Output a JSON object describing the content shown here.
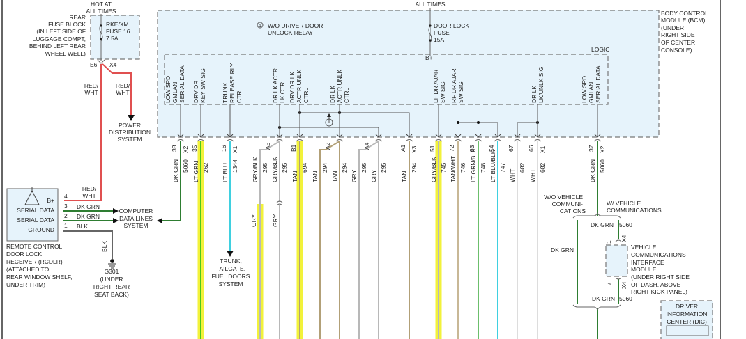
{
  "rear_fuse_block": {
    "hot_label": [
      "HOT AT",
      "ALL TIMES"
    ],
    "location": [
      "REAR",
      "FUSE BLOCK",
      "(IN LEFT SIDE OF",
      "LUGGAGE COMPT,",
      "BEHIND LEFT REAR",
      "WHEEL WELL)"
    ],
    "fuse": [
      "RKE/XM",
      "FUSE 16",
      "7.5A"
    ],
    "pin": "E6",
    "connector": "X4"
  },
  "red_wire_labels": [
    "RED/",
    "WHT"
  ],
  "power_distribution": [
    "POWER",
    "DISTRIBUTION",
    "SYSTEM"
  ],
  "bcm": {
    "hot_label": "ALL TIMES",
    "name": [
      "BODY CONTROL",
      "MODULE (BCM)",
      "(UNDER",
      "RIGHT SIDE",
      "OF CENTER",
      "CONSOLE)"
    ],
    "relay_note_symbol": "1",
    "relay_note": [
      "W/O DRIVER DOOR",
      "UNLOCK RELAY"
    ],
    "fuse": [
      "DOOR LOCK",
      "FUSE",
      "15A"
    ],
    "bplus": "B+",
    "logic": "LOGIC",
    "signals": [
      [
        "LOW SPD",
        "GMLAN",
        "SERIAL DATA"
      ],
      [
        "DRV DR",
        "KEY SW SIG"
      ],
      [
        "TRUNK",
        "RELEASE RLY",
        "CTRL"
      ],
      [
        "DR LK ACTR",
        "LK CTRL"
      ],
      [
        "DRV DR LK",
        "ACTR UNLK",
        "CTRL"
      ],
      [
        "DR LK",
        "ACTR UNLK",
        "CTRL"
      ],
      [
        "LF DR AJAR",
        "SW SIG"
      ],
      [
        "RF DR AJAR",
        "SW SIG"
      ],
      [
        "DR LK",
        "LK/UNLK SIG"
      ],
      [
        "LOW SPD",
        "GMLAN",
        "SERIAL DATA"
      ]
    ]
  },
  "wires": [
    {
      "pin": "38",
      "connector": "X2",
      "color": "DK GRN",
      "circuit": "5060"
    },
    {
      "pin": "35",
      "connector": "",
      "color": "LT GRN",
      "circuit": "262"
    },
    {
      "pin": "16",
      "connector": "X1",
      "color": "LT BLU",
      "circuit": "1344"
    },
    {
      "pin": "A5",
      "connector": "",
      "color": "GRY/BLK",
      "circuit": "295"
    },
    {
      "pin": "",
      "connector": "",
      "color": "GRY/BLK",
      "circuit": "295"
    },
    {
      "pin": "B1",
      "connector": "",
      "color": "TAN",
      "circuit": "694"
    },
    {
      "pin": "A2",
      "connector": "",
      "color": "TAN",
      "circuit": "294"
    },
    {
      "pin": "",
      "connector": "",
      "color": "TAN",
      "circuit": "294"
    },
    {
      "pin": "A4",
      "connector": "",
      "color": "GRY",
      "circuit": "295"
    },
    {
      "pin": "",
      "connector": "",
      "color": "GRY",
      "circuit": "295"
    },
    {
      "pin": "A1",
      "connector": "X3",
      "color": "TAN",
      "circuit": "294"
    },
    {
      "pin": "51",
      "connector": "",
      "color": "GRY/BLK",
      "circuit": "745"
    },
    {
      "pin": "72",
      "connector": "",
      "color": "TAN/WHT",
      "circuit": "746"
    },
    {
      "pin": "53",
      "connector": "",
      "color": "LT GRN/BLK",
      "circuit": "748"
    },
    {
      "pin": "54",
      "connector": "",
      "color": "LT BLU/BLK",
      "circuit": "747"
    },
    {
      "pin": "67",
      "connector": "",
      "color": "WHT",
      "circuit": "682"
    },
    {
      "pin": "66",
      "connector": "X1",
      "color": "WHT",
      "circuit": "682"
    },
    {
      "pin": "37",
      "connector": "X2",
      "color": "DK GRN",
      "circuit": "5060"
    }
  ],
  "gry_labels": [
    "GRY",
    "GRY"
  ],
  "trunk_system": [
    "TRUNK,",
    "TAILGATE,",
    "FUEL DOORS",
    "SYSTEM"
  ],
  "rcdlr": {
    "pins": [
      {
        "num": "4",
        "label": "B+",
        "wire": "RED/WHT"
      },
      {
        "num": "3",
        "label": "SERIAL DATA",
        "wire": "DK GRN"
      },
      {
        "num": "2",
        "label": "SERIAL DATA",
        "wire": "DK GRN"
      },
      {
        "num": "1",
        "label": "GROUND",
        "wire": "BLK"
      }
    ],
    "wire_red": [
      "RED/",
      "WHT"
    ],
    "name": [
      "REMOTE CONTROL",
      "DOOR LOCK",
      "RECEIVER (RCDLR)",
      "(ATTACHED TO",
      "REAR WINDOW SHELF,",
      "UNDER TRIM)"
    ]
  },
  "computer_data_lines": [
    "COMPUTER",
    "DATA LINES",
    "SYSTEM"
  ],
  "ground": {
    "wire": "BLK",
    "name": [
      "G301",
      "(UNDER",
      "RIGHT REAR",
      "SEAT BACK)"
    ]
  },
  "vehicle_comm": {
    "without": [
      "W/O VEHICLE",
      "COMMUNI-",
      "CATIONS"
    ],
    "with": [
      "W/ VEHICLE",
      "COMMUNICATIONS"
    ],
    "without_wire": "DK GRN",
    "upper_wire": {
      "color": "DK GRN",
      "circuit": "5060"
    },
    "lower_wire": {
      "color": "DK GRN",
      "circuit": "5060"
    },
    "pin_in": "1",
    "pin_out": "7",
    "connector": "X4",
    "module": [
      "VEHICLE",
      "COMMUNICATIONS",
      "INTERFACE",
      "MODULE",
      "(UNDER RIGHT SIDE",
      "OF DASH, ABOVE",
      "RIGHT KICK PANEL)"
    ]
  },
  "dic": [
    "DRIVER",
    "INFORMATION",
    "CENTER (DIC)"
  ],
  "colors": {
    "dk_grn": "#2e7d32",
    "lt_grn": "#4cc81a",
    "lt_blu": "#3fd0e0",
    "tan": "#b2a077",
    "gry": "#b8b8b8",
    "red_wht": "#e05050",
    "highlight": "#f2f23a",
    "module_fill": "#e6f3fb"
  }
}
